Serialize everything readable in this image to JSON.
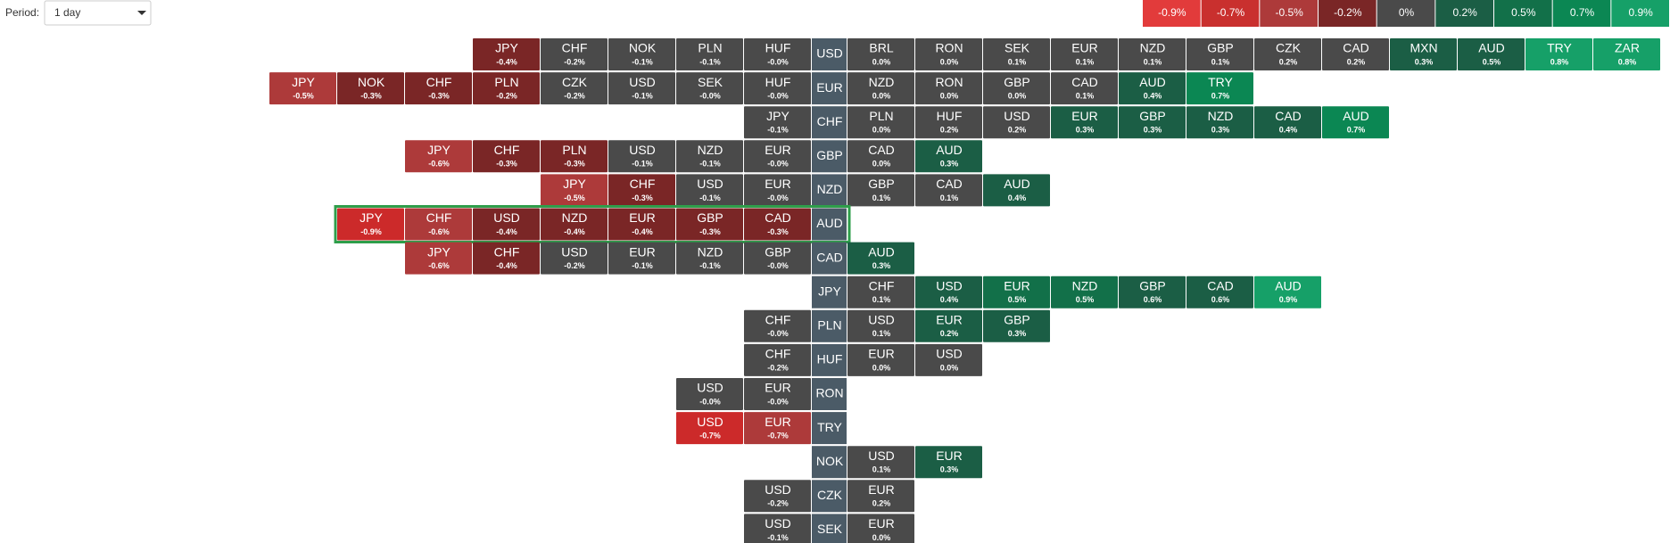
{
  "period": {
    "label": "Period:",
    "selected": "1 day"
  },
  "legend": [
    {
      "label": "-0.9%",
      "color": "#e23b3b"
    },
    {
      "label": "-0.7%",
      "color": "#c9302e"
    },
    {
      "label": "-0.5%",
      "color": "#ad3a3a"
    },
    {
      "label": "-0.2%",
      "color": "#7a2626"
    },
    {
      "label": "0%",
      "color": "#4a4a4a"
    },
    {
      "label": "0.2%",
      "color": "#1b5e45"
    },
    {
      "label": "0.5%",
      "color": "#127049"
    },
    {
      "label": "0.7%",
      "color": "#0b8753"
    },
    {
      "label": "0.9%",
      "color": "#16a068"
    }
  ],
  "rows": [
    {
      "base": "USD",
      "left": [
        [
          "JPY",
          "-0.4%",
          "#7a2626"
        ],
        [
          "CHF",
          "-0.2%",
          "#4a4a4a"
        ],
        [
          "NOK",
          "-0.1%",
          "#4a4a4a"
        ],
        [
          "PLN",
          "-0.1%",
          "#4a4a4a"
        ],
        [
          "HUF",
          "-0.0%",
          "#4a4a4a"
        ]
      ],
      "right": [
        [
          "BRL",
          "0.0%",
          "#4a4a4a"
        ],
        [
          "RON",
          "0.0%",
          "#4a4a4a"
        ],
        [
          "SEK",
          "0.1%",
          "#4a4a4a"
        ],
        [
          "EUR",
          "0.1%",
          "#4a4a4a"
        ],
        [
          "NZD",
          "0.1%",
          "#4a4a4a"
        ],
        [
          "GBP",
          "0.1%",
          "#4a4a4a"
        ],
        [
          "CZK",
          "0.2%",
          "#4a4a4a"
        ],
        [
          "CAD",
          "0.2%",
          "#4a4a4a"
        ],
        [
          "MXN",
          "0.3%",
          "#1b5e45"
        ],
        [
          "AUD",
          "0.5%",
          "#1b5e45"
        ],
        [
          "TRY",
          "0.8%",
          "#16a068"
        ],
        [
          "ZAR",
          "0.8%",
          "#16a068"
        ]
      ]
    },
    {
      "base": "EUR",
      "left": [
        [
          "JPY",
          "-0.5%",
          "#ad3a3a"
        ],
        [
          "NOK",
          "-0.3%",
          "#7a2626"
        ],
        [
          "CHF",
          "-0.3%",
          "#7a2626"
        ],
        [
          "PLN",
          "-0.2%",
          "#7a2626"
        ],
        [
          "CZK",
          "-0.2%",
          "#4a4a4a"
        ],
        [
          "USD",
          "-0.1%",
          "#4a4a4a"
        ],
        [
          "SEK",
          "-0.0%",
          "#4a4a4a"
        ],
        [
          "HUF",
          "-0.0%",
          "#4a4a4a"
        ]
      ],
      "right": [
        [
          "NZD",
          "0.0%",
          "#4a4a4a"
        ],
        [
          "RON",
          "0.0%",
          "#4a4a4a"
        ],
        [
          "GBP",
          "0.0%",
          "#4a4a4a"
        ],
        [
          "CAD",
          "0.1%",
          "#4a4a4a"
        ],
        [
          "AUD",
          "0.4%",
          "#1b5e45"
        ],
        [
          "TRY",
          "0.7%",
          "#0b8753"
        ]
      ]
    },
    {
      "base": "CHF",
      "left": [
        [
          "JPY",
          "-0.1%",
          "#4a4a4a"
        ]
      ],
      "right": [
        [
          "PLN",
          "0.0%",
          "#4a4a4a"
        ],
        [
          "HUF",
          "0.2%",
          "#4a4a4a"
        ],
        [
          "USD",
          "0.2%",
          "#4a4a4a"
        ],
        [
          "EUR",
          "0.3%",
          "#1b5e45"
        ],
        [
          "GBP",
          "0.3%",
          "#1b5e45"
        ],
        [
          "NZD",
          "0.3%",
          "#1b5e45"
        ],
        [
          "CAD",
          "0.4%",
          "#1b5e45"
        ],
        [
          "AUD",
          "0.7%",
          "#0b8753"
        ]
      ]
    },
    {
      "base": "GBP",
      "left": [
        [
          "JPY",
          "-0.6%",
          "#ad3a3a"
        ],
        [
          "CHF",
          "-0.3%",
          "#7a2626"
        ],
        [
          "PLN",
          "-0.3%",
          "#7a2626"
        ],
        [
          "USD",
          "-0.1%",
          "#4a4a4a"
        ],
        [
          "NZD",
          "-0.1%",
          "#4a4a4a"
        ],
        [
          "EUR",
          "-0.0%",
          "#4a4a4a"
        ]
      ],
      "right": [
        [
          "CAD",
          "0.0%",
          "#4a4a4a"
        ],
        [
          "AUD",
          "0.3%",
          "#1b5e45"
        ]
      ]
    },
    {
      "base": "NZD",
      "left": [
        [
          "JPY",
          "-0.5%",
          "#ad3a3a"
        ],
        [
          "CHF",
          "-0.3%",
          "#7a2626"
        ],
        [
          "USD",
          "-0.1%",
          "#4a4a4a"
        ],
        [
          "EUR",
          "-0.0%",
          "#4a4a4a"
        ]
      ],
      "right": [
        [
          "GBP",
          "0.1%",
          "#4a4a4a"
        ],
        [
          "CAD",
          "0.1%",
          "#4a4a4a"
        ],
        [
          "AUD",
          "0.4%",
          "#1b5e45"
        ]
      ]
    },
    {
      "base": "AUD",
      "selected": true,
      "left": [
        [
          "JPY",
          "-0.9%",
          "#cc2a2a"
        ],
        [
          "CHF",
          "-0.6%",
          "#ad3a3a"
        ],
        [
          "USD",
          "-0.4%",
          "#7a2626"
        ],
        [
          "NZD",
          "-0.4%",
          "#7a2626"
        ],
        [
          "EUR",
          "-0.4%",
          "#7a2626"
        ],
        [
          "GBP",
          "-0.3%",
          "#7a2626"
        ],
        [
          "CAD",
          "-0.3%",
          "#7a2626"
        ]
      ],
      "right": []
    },
    {
      "base": "CAD",
      "left": [
        [
          "JPY",
          "-0.6%",
          "#ad3a3a"
        ],
        [
          "CHF",
          "-0.4%",
          "#7a2626"
        ],
        [
          "USD",
          "-0.2%",
          "#4a4a4a"
        ],
        [
          "EUR",
          "-0.1%",
          "#4a4a4a"
        ],
        [
          "NZD",
          "-0.1%",
          "#4a4a4a"
        ],
        [
          "GBP",
          "-0.0%",
          "#4a4a4a"
        ]
      ],
      "right": [
        [
          "AUD",
          "0.3%",
          "#1b5e45"
        ]
      ]
    },
    {
      "base": "JPY",
      "left": [],
      "right": [
        [
          "CHF",
          "0.1%",
          "#4a4a4a"
        ],
        [
          "USD",
          "0.4%",
          "#1b5e45"
        ],
        [
          "EUR",
          "0.5%",
          "#127049"
        ],
        [
          "NZD",
          "0.5%",
          "#127049"
        ],
        [
          "GBP",
          "0.6%",
          "#1b5e45"
        ],
        [
          "CAD",
          "0.6%",
          "#1b5e45"
        ],
        [
          "AUD",
          "0.9%",
          "#16a068"
        ]
      ]
    },
    {
      "base": "PLN",
      "left": [
        [
          "CHF",
          "-0.0%",
          "#4a4a4a"
        ]
      ],
      "right": [
        [
          "USD",
          "0.1%",
          "#4a4a4a"
        ],
        [
          "EUR",
          "0.2%",
          "#1b5e45"
        ],
        [
          "GBP",
          "0.3%",
          "#1b5e45"
        ]
      ]
    },
    {
      "base": "HUF",
      "left": [
        [
          "CHF",
          "-0.2%",
          "#4a4a4a"
        ]
      ],
      "right": [
        [
          "EUR",
          "0.0%",
          "#4a4a4a"
        ],
        [
          "USD",
          "0.0%",
          "#4a4a4a"
        ]
      ]
    },
    {
      "base": "RON",
      "left": [
        [
          "USD",
          "-0.0%",
          "#4a4a4a"
        ],
        [
          "EUR",
          "-0.0%",
          "#4a4a4a"
        ]
      ],
      "right": []
    },
    {
      "base": "TRY",
      "left": [
        [
          "USD",
          "-0.7%",
          "#cc2a2a"
        ],
        [
          "EUR",
          "-0.7%",
          "#ad3a3a"
        ]
      ],
      "right": []
    },
    {
      "base": "NOK",
      "left": [],
      "right": [
        [
          "USD",
          "0.1%",
          "#4a4a4a"
        ],
        [
          "EUR",
          "0.3%",
          "#1b5e45"
        ]
      ]
    },
    {
      "base": "CZK",
      "left": [
        [
          "USD",
          "-0.2%",
          "#4a4a4a"
        ]
      ],
      "right": [
        [
          "EUR",
          "0.2%",
          "#4a4a4a"
        ]
      ]
    },
    {
      "base": "SEK",
      "left": [
        [
          "USD",
          "-0.1%",
          "#4a4a4a"
        ]
      ],
      "right": [
        [
          "EUR",
          "0.0%",
          "#4a4a4a"
        ]
      ]
    }
  ]
}
